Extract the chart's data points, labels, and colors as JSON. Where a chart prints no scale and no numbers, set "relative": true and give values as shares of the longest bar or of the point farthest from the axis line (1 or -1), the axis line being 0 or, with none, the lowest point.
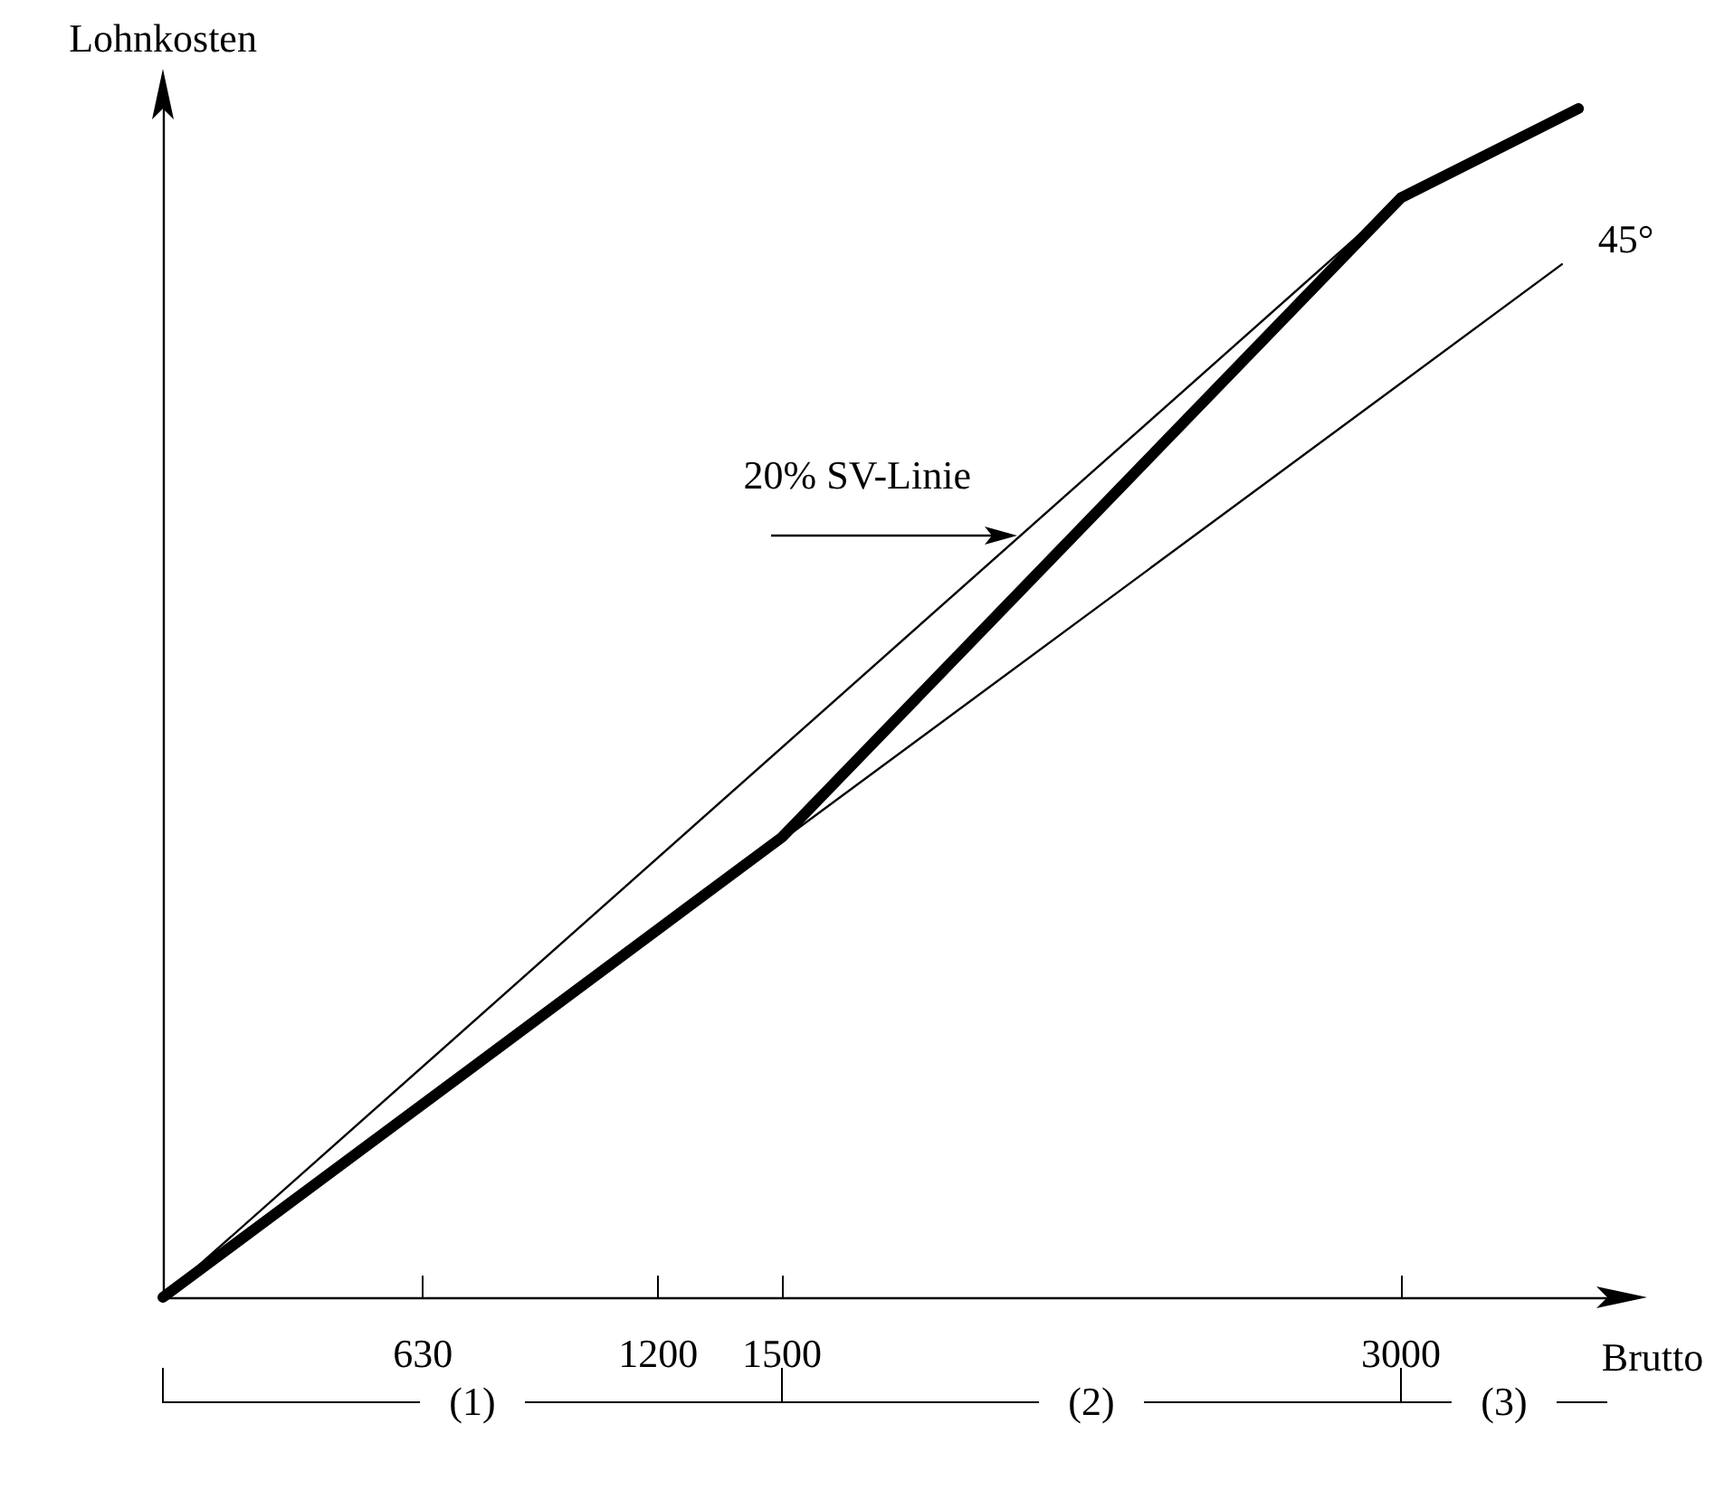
{
  "chart_data": {
    "type": "line",
    "relative": true,
    "xlabel": "Brutto",
    "ylabel": "Lohnkosten",
    "xlim": [
      0,
      3500
    ],
    "xticks": [
      630,
      1200,
      1500,
      3000
    ],
    "tick_labels": "x",
    "grid": false,
    "legend": false,
    "marker": "none",
    "line_style": "solid",
    "series": [
      {
        "color": "#000000",
        "x": [
          0,
          1500,
          3000,
          3430
        ],
        "values": [
          0,
          0.387,
          0.925,
          1
        ]
      },
      {
        "name": "45°",
        "color": "#000000",
        "x": [
          0,
          3390
        ],
        "values": [
          0,
          0.869
        ]
      },
      {
        "name": "20% SV-Linie",
        "color": "#000000",
        "x": [
          0,
          3000
        ],
        "values": [
          0,
          0.925
        ]
      }
    ],
    "annotations": [
      "(1)",
      "(2)",
      "(3)"
    ]
  }
}
